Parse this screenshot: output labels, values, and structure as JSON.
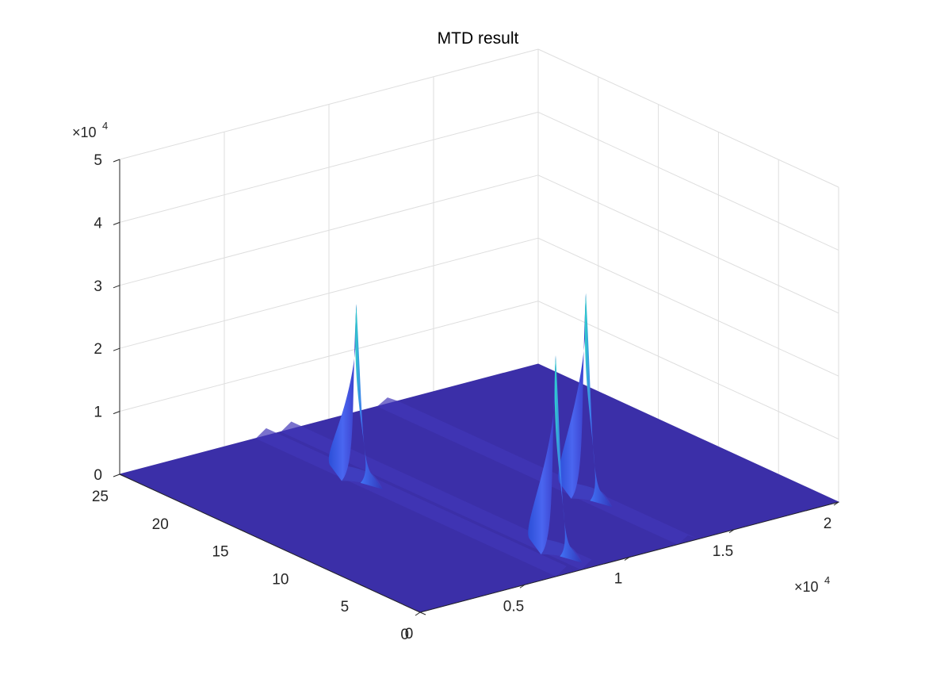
{
  "chart_data": {
    "type": "surface",
    "title": "MTD  result",
    "xlabel": "",
    "ylabel": "",
    "zlabel": "",
    "x_ticks": [
      "0",
      "0.5",
      "1",
      "1.5",
      "2"
    ],
    "x_exponent": "×10",
    "x_exponent_power": "4",
    "xlim": [
      0,
      20000
    ],
    "y_ticks": [
      "0",
      "5",
      "10",
      "15",
      "20",
      "25"
    ],
    "ylim": [
      0,
      25
    ],
    "z_ticks": [
      "0",
      "1",
      "2",
      "3",
      "4",
      "5"
    ],
    "z_exponent": "×10",
    "z_exponent_power": "4",
    "zlim": [
      0,
      50000
    ],
    "grid": true,
    "colormap": "parula",
    "surface_color": "#3b2fa8",
    "peak_highlight_color": "#2fd4c8",
    "peaks": [
      {
        "x": 7000,
        "y": 17.5,
        "z": 27500
      },
      {
        "x": 8200,
        "y": 3,
        "z": 31000
      },
      {
        "x": 12800,
        "y": 8.5,
        "z": 32000
      }
    ],
    "ridges": [
      {
        "x": 7000,
        "z": 1200
      },
      {
        "x": 8200,
        "z": 1200
      },
      {
        "x": 12800,
        "z": 1000
      }
    ]
  }
}
